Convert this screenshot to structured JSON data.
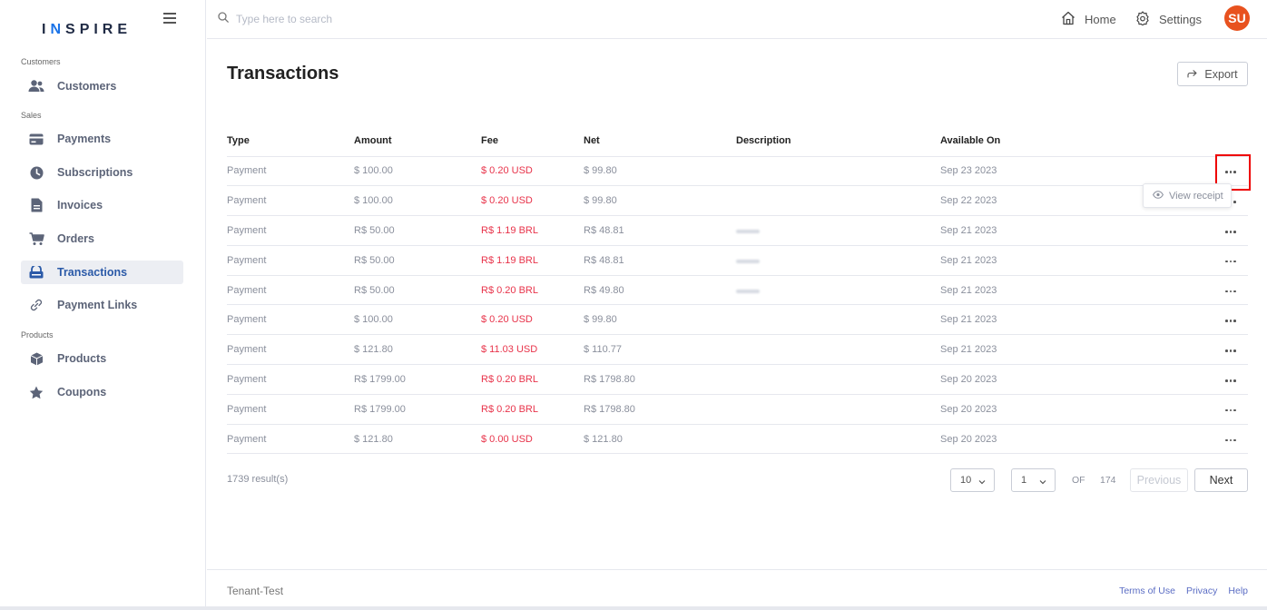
{
  "sidebar": {
    "brand": {
      "pre": "I",
      "accent": "N",
      "post": "SPIRE"
    },
    "sections": [
      {
        "label": "Customers"
      },
      {
        "label": "Sales"
      },
      {
        "label": "Products"
      }
    ],
    "items": [
      {
        "label": "Customers",
        "icon": "users-icon"
      },
      {
        "label": "Payments",
        "icon": "credit-card-icon"
      },
      {
        "label": "Subscriptions",
        "icon": "clock-icon"
      },
      {
        "label": "Invoices",
        "icon": "document-icon"
      },
      {
        "label": "Orders",
        "icon": "cart-icon"
      },
      {
        "label": "Transactions",
        "icon": "wallet-icon",
        "active": true
      },
      {
        "label": "Payment Links",
        "icon": "link-icon"
      },
      {
        "label": "Products",
        "icon": "box-icon"
      },
      {
        "label": "Coupons",
        "icon": "star-icon"
      }
    ]
  },
  "topbar": {
    "search_placeholder": "Type here to search",
    "home_label": "Home",
    "settings_label": "Settings",
    "avatar_initials": "SU"
  },
  "main": {
    "title": "Transactions",
    "export_label": "Export",
    "columns": [
      "Type",
      "Amount",
      "Fee",
      "Net",
      "Description",
      "Available On"
    ],
    "rows": [
      {
        "type": "Payment",
        "amount": "$ 100.00",
        "fee": "$ 0.20 USD",
        "net": "$ 99.80",
        "available_on": "Sep 23 2023"
      },
      {
        "type": "Payment",
        "amount": "$ 100.00",
        "fee": "$ 0.20 USD",
        "net": "$ 99.80",
        "available_on": "Sep 22 2023"
      },
      {
        "type": "Payment",
        "amount": "R$ 50.00",
        "fee": "R$ 1.19 BRL",
        "net": "R$ 48.81",
        "available_on": "Sep 21 2023"
      },
      {
        "type": "Payment",
        "amount": "R$ 50.00",
        "fee": "R$ 1.19 BRL",
        "net": "R$ 48.81",
        "available_on": "Sep 21 2023"
      },
      {
        "type": "Payment",
        "amount": "R$ 50.00",
        "fee": "R$ 0.20 BRL",
        "net": "R$ 49.80",
        "available_on": "Sep 21 2023"
      },
      {
        "type": "Payment",
        "amount": "$ 100.00",
        "fee": "$ 0.20 USD",
        "net": "$ 99.80",
        "available_on": "Sep 21 2023"
      },
      {
        "type": "Payment",
        "amount": "$ 121.80",
        "fee": "$ 11.03 USD",
        "net": "$ 110.77",
        "available_on": "Sep 21 2023"
      },
      {
        "type": "Payment",
        "amount": "R$ 1799.00",
        "fee": "R$ 0.20 BRL",
        "net": "R$ 1798.80",
        "available_on": "Sep 20 2023"
      },
      {
        "type": "Payment",
        "amount": "R$ 1799.00",
        "fee": "R$ 0.20 BRL",
        "net": "R$ 1798.80",
        "available_on": "Sep 20 2023"
      },
      {
        "type": "Payment",
        "amount": "$ 121.80",
        "fee": "$ 0.00 USD",
        "net": "$ 121.80",
        "available_on": "Sep 20 2023"
      }
    ],
    "row_menu": {
      "view_receipt_label": "View receipt"
    },
    "pagination": {
      "results_label": "1739 result(s)",
      "page_size": "10",
      "current_page": "1",
      "of_label": "OF",
      "total_pages": "174",
      "previous_label": "Previous",
      "next_label": "Next"
    }
  },
  "footer": {
    "tenant": "Tenant-Test",
    "links": [
      "Terms of Use",
      "Privacy",
      "Help"
    ]
  },
  "colors": {
    "accent": "#2b5aa8",
    "avatar_bg": "#e8521f",
    "fee_red": "#e8334a",
    "highlight_red": "#ee0000"
  }
}
